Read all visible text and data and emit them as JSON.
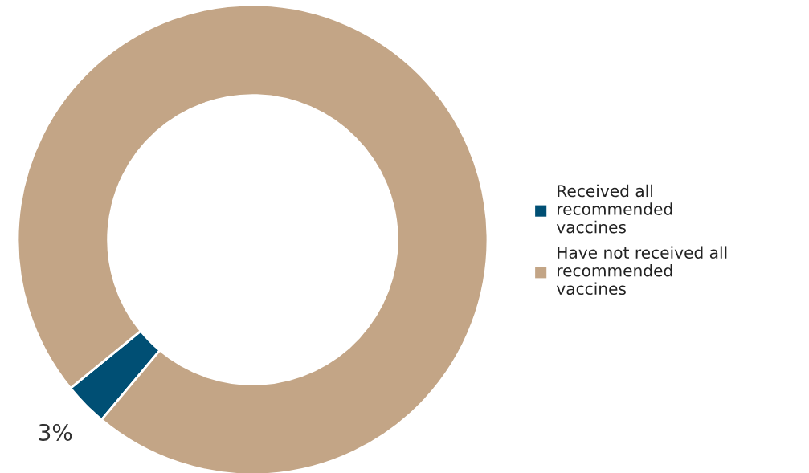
{
  "chart_data": {
    "type": "donut",
    "categories": [
      "Received all\nrecommended\nvaccines",
      "Have not received all\nrecommended\nvaccines"
    ],
    "values": [
      3,
      97
    ],
    "colors": [
      "#004f74",
      "#c3a586"
    ],
    "value_labels": [
      "3%",
      null
    ],
    "legend": "right"
  }
}
